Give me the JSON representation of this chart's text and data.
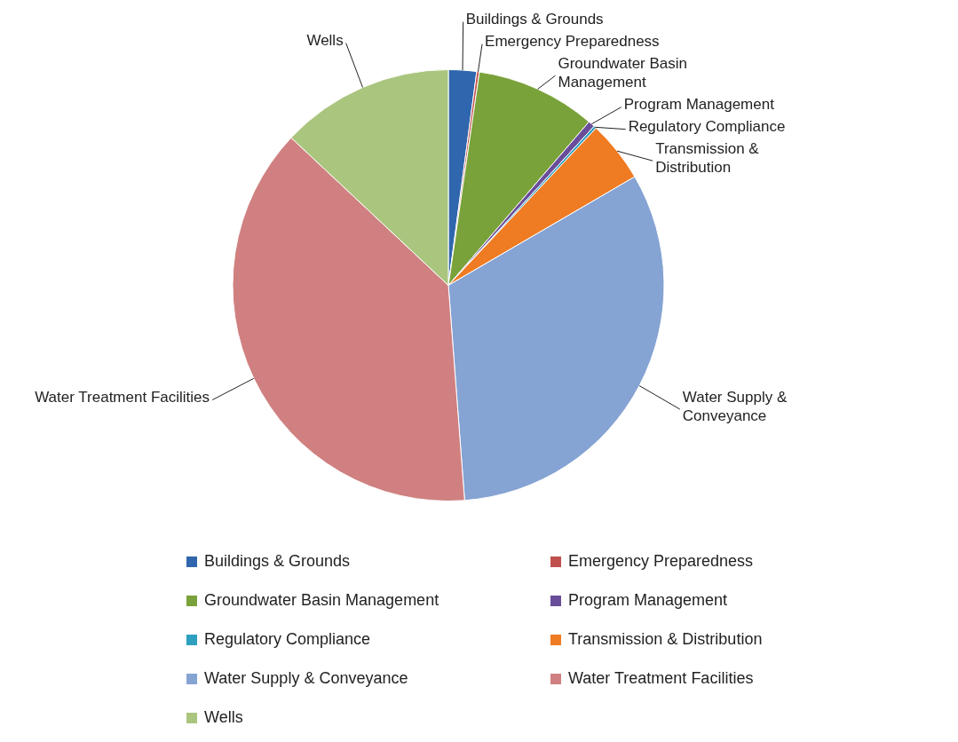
{
  "chart_data": {
    "type": "pie",
    "categories": [
      "Buildings & Grounds",
      "Emergency Preparedness",
      "Groundwater Basin Management",
      "Program Management",
      "Regulatory Compliance",
      "Transmission & Distribution",
      "Water Supply & Conveyance",
      "Water Treatment Facilities",
      "Wells"
    ],
    "values": [
      2.1,
      0.2,
      9,
      0.5,
      0.2,
      4.6,
      32.2,
      38.2,
      13
    ],
    "colors": [
      "#3066ad",
      "#c0504d",
      "#7aa23a",
      "#6a4d9a",
      "#2d9fbf",
      "#ef7b22",
      "#85a3d3",
      "#d08080",
      "#aac57e"
    ],
    "legend": "bottom"
  }
}
